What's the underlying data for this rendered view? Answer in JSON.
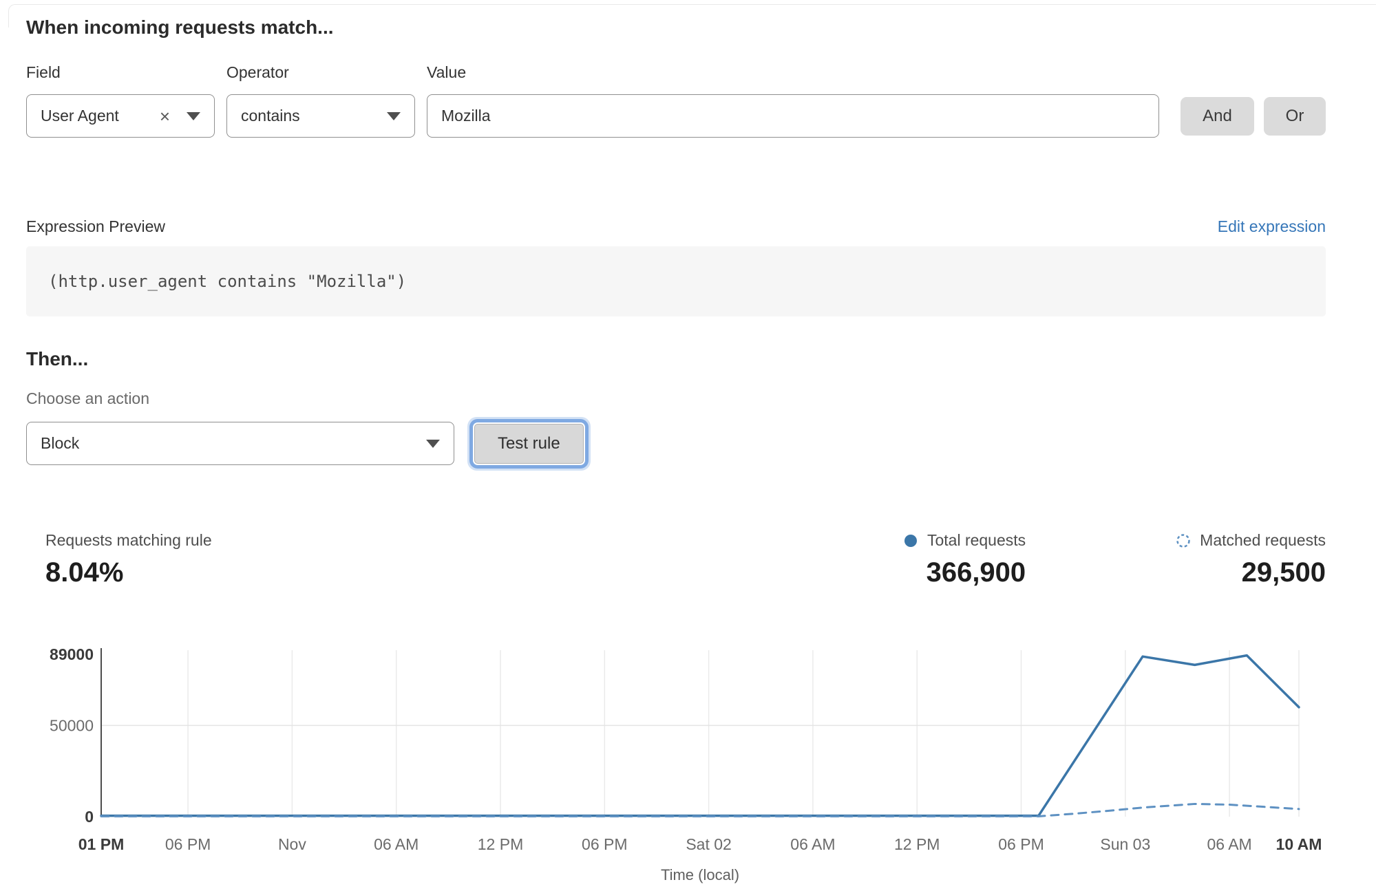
{
  "page": {
    "match_heading": "When incoming requests match...",
    "then_heading": "Then..."
  },
  "condition": {
    "field_label": "Field",
    "field_value": "User Agent",
    "operator_label": "Operator",
    "operator_value": "contains",
    "value_label": "Value",
    "value_text": "Mozilla",
    "and_button": "And",
    "or_button": "Or"
  },
  "expression": {
    "label": "Expression Preview",
    "edit_link": "Edit expression",
    "code": "(http.user_agent contains \"Mozilla\")"
  },
  "action": {
    "choose_label": "Choose an action",
    "selected": "Block",
    "test_button": "Test rule"
  },
  "stats": {
    "matching_label": "Requests matching rule",
    "matching_value": "8.04%",
    "total_label": "Total requests",
    "total_value": "366,900",
    "matched_label": "Matched requests",
    "matched_value": "29,500"
  },
  "colors": {
    "accent_blue": "#3b76a8",
    "dashed_blue": "#5e91c2",
    "link_blue": "#3576b8",
    "focus_ring": "#7fa9e2"
  },
  "chart_data": {
    "type": "line",
    "title": "",
    "xlabel": "Time (local)",
    "ylabel": "",
    "ylim": [
      0,
      89000
    ],
    "x_hours_span": 69,
    "grid": {
      "vertical": true,
      "horizontal_at": [
        50000
      ]
    },
    "legend_position": "above-right",
    "yticks": [
      {
        "value": 0,
        "label": "0",
        "bold": true
      },
      {
        "value": 50000,
        "label": "50000",
        "bold": false
      },
      {
        "value": 89000,
        "label": "89000",
        "bold": true
      }
    ],
    "xticks": [
      {
        "h": 0,
        "label": "01 PM",
        "bold": true
      },
      {
        "h": 5,
        "label": "06 PM",
        "bold": false
      },
      {
        "h": 11,
        "label": "Nov",
        "bold": false
      },
      {
        "h": 17,
        "label": "06 AM",
        "bold": false
      },
      {
        "h": 23,
        "label": "12 PM",
        "bold": false
      },
      {
        "h": 29,
        "label": "06 PM",
        "bold": false
      },
      {
        "h": 35,
        "label": "Sat 02",
        "bold": false
      },
      {
        "h": 41,
        "label": "06 AM",
        "bold": false
      },
      {
        "h": 47,
        "label": "12 PM",
        "bold": false
      },
      {
        "h": 53,
        "label": "06 PM",
        "bold": false
      },
      {
        "h": 59,
        "label": "Sun 03",
        "bold": false
      },
      {
        "h": 65,
        "label": "06 AM",
        "bold": false
      },
      {
        "h": 69,
        "label": "10 AM",
        "bold": true
      }
    ],
    "series": [
      {
        "name": "Total requests",
        "style": "solid",
        "color": "#3b76a8",
        "points": [
          [
            0,
            500
          ],
          [
            54,
            500
          ],
          [
            60,
            87800
          ],
          [
            63,
            83200
          ],
          [
            66,
            88400
          ],
          [
            69,
            60000
          ]
        ]
      },
      {
        "name": "Matched requests",
        "style": "dashed",
        "color": "#5e91c2",
        "points": [
          [
            0,
            200
          ],
          [
            54,
            200
          ],
          [
            56,
            1600
          ],
          [
            58,
            3200
          ],
          [
            60,
            5000
          ],
          [
            63,
            7000
          ],
          [
            65,
            6600
          ],
          [
            67,
            5400
          ],
          [
            69,
            4200
          ]
        ]
      }
    ]
  }
}
